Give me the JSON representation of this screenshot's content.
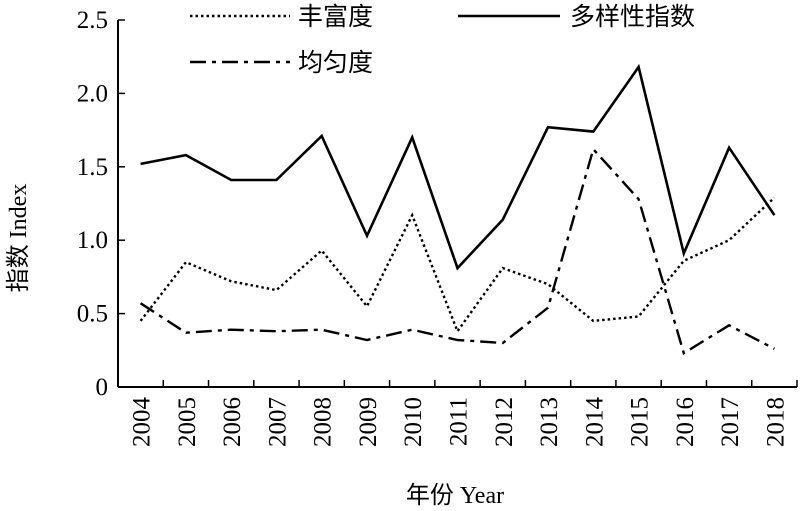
{
  "chart_data": {
    "type": "line",
    "title": "",
    "xlabel": "年份 Year",
    "ylabel": "指数 Index",
    "categories": [
      "2004",
      "2005",
      "2006",
      "2007",
      "2008",
      "2009",
      "2010",
      "2011",
      "2012",
      "2013",
      "2014",
      "2015",
      "2016",
      "2017",
      "2018"
    ],
    "ylim": [
      0,
      2.5
    ],
    "yticks": [
      "0",
      "0.5",
      "1.0",
      "1.5",
      "2.0",
      "2.5"
    ],
    "grid": false,
    "legend_position": "top",
    "series": [
      {
        "name": "丰富度",
        "style": "dotted",
        "color": "#000000",
        "values": [
          0.45,
          0.85,
          0.72,
          0.66,
          0.93,
          0.55,
          1.17,
          0.38,
          0.81,
          0.7,
          0.45,
          0.48,
          0.86,
          1.0,
          1.29
        ]
      },
      {
        "name": "多样性指数",
        "style": "solid",
        "color": "#000000",
        "values": [
          1.52,
          1.58,
          1.41,
          1.41,
          1.71,
          1.03,
          1.7,
          0.81,
          1.14,
          1.77,
          1.74,
          2.18,
          0.91,
          1.63,
          1.17
        ]
      },
      {
        "name": "均匀度",
        "style": "dashdot",
        "color": "#000000",
        "values": [
          0.57,
          0.37,
          0.39,
          0.38,
          0.39,
          0.32,
          0.39,
          0.32,
          0.3,
          0.54,
          1.62,
          1.28,
          0.23,
          0.42,
          0.26
        ]
      }
    ]
  }
}
